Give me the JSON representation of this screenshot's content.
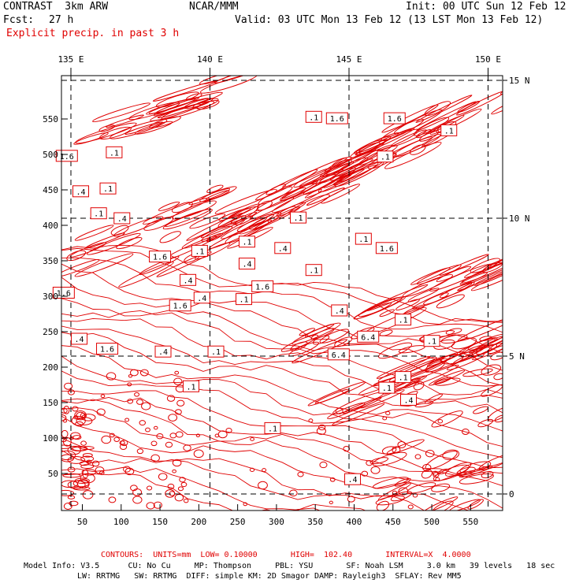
{
  "header": {
    "model": "CONTRAST  3km ARW",
    "org": "NCAR/MMM",
    "init": "Init: 00 UTC Sun 12 Feb 12",
    "fcst_label": "Fcst:",
    "fcst_value": "27 h",
    "valid": "Valid: 03 UTC Mon 13 Feb 12 (13 LST Mon 13 Feb 12)",
    "field": "Explicit precip. in past 3 h"
  },
  "chart_data": {
    "type": "contour",
    "x_ticks": [
      50,
      100,
      150,
      200,
      250,
      300,
      350,
      400,
      450,
      500,
      550
    ],
    "y_ticks": [
      50,
      100,
      150,
      200,
      250,
      300,
      350,
      400,
      450,
      500,
      550
    ],
    "xlim": [
      0,
      560
    ],
    "ylim": [
      0,
      560
    ],
    "lon_labels": [
      "135 E",
      "140 E",
      "145 E",
      "150 E"
    ],
    "lon_values": [
      135,
      140,
      145,
      150
    ],
    "lat_labels": [
      "15 N",
      "10 N",
      "5 N",
      "0"
    ],
    "lat_values": [
      15,
      10,
      5,
      0
    ],
    "contour_labels": [
      {
        "text": ".1",
        "x": 348,
        "y": 553
      },
      {
        "text": "1.6",
        "x": 378,
        "y": 551
      },
      {
        "text": "1.6",
        "x": 452,
        "y": 551
      },
      {
        "text": ".1",
        "x": 522,
        "y": 534
      },
      {
        "text": "1.6",
        "x": 30,
        "y": 498
      },
      {
        "text": ".1",
        "x": 91,
        "y": 503
      },
      {
        "text": ".1",
        "x": 440,
        "y": 497
      },
      {
        "text": ".4",
        "x": 48,
        "y": 448
      },
      {
        "text": ".1",
        "x": 83,
        "y": 452
      },
      {
        "text": ".1",
        "x": 71,
        "y": 417
      },
      {
        "text": ".4",
        "x": 101,
        "y": 410
      },
      {
        "text": ".1",
        "x": 328,
        "y": 411
      },
      {
        "text": ".1",
        "x": 262,
        "y": 377
      },
      {
        "text": ".1",
        "x": 412,
        "y": 381
      },
      {
        "text": "1.6",
        "x": 442,
        "y": 368
      },
      {
        "text": ".4",
        "x": 308,
        "y": 368
      },
      {
        "text": ".1",
        "x": 201,
        "y": 364
      },
      {
        "text": "1.6",
        "x": 150,
        "y": 356
      },
      {
        "text": ".4",
        "x": 262,
        "y": 346
      },
      {
        "text": ".1",
        "x": 348,
        "y": 337
      },
      {
        "text": ".4",
        "x": 186,
        "y": 323
      },
      {
        "text": "1.6",
        "x": 282,
        "y": 314
      },
      {
        "text": "1.6",
        "x": 26,
        "y": 305
      },
      {
        "text": ".4",
        "x": 204,
        "y": 298
      },
      {
        "text": ".1",
        "x": 258,
        "y": 296
      },
      {
        "text": "1.6",
        "x": 176,
        "y": 287
      },
      {
        "text": ".4",
        "x": 381,
        "y": 280
      },
      {
        "text": ".1",
        "x": 463,
        "y": 267
      },
      {
        "text": ".4",
        "x": 46,
        "y": 240
      },
      {
        "text": "6.4",
        "x": 418,
        "y": 243
      },
      {
        "text": ".1",
        "x": 500,
        "y": 237
      },
      {
        "text": "1.6",
        "x": 82,
        "y": 226
      },
      {
        "text": ".4",
        "x": 154,
        "y": 222
      },
      {
        "text": ".1",
        "x": 222,
        "y": 222
      },
      {
        "text": "6.4",
        "x": 380,
        "y": 218
      },
      {
        "text": ".1",
        "x": 463,
        "y": 186
      },
      {
        "text": ".1",
        "x": 190,
        "y": 173
      },
      {
        "text": ".1",
        "x": 442,
        "y": 171
      },
      {
        "text": ".4",
        "x": 470,
        "y": 154
      },
      {
        "text": ".1",
        "x": 295,
        "y": 114
      },
      {
        "text": ".4",
        "x": 398,
        "y": 42
      }
    ]
  },
  "footer": {
    "contours": "CONTOURS:  UNITS=mm  LOW= 0.10000       HIGH=  102.40       INTERVAL=X  4.0000",
    "line1": "Model Info: V3.5      CU: No Cu     MP: Thompson     PBL: YSU       SF: Noah LSM     3.0 km   39 levels   18 sec",
    "line2": "LW: RRTMG   SW: RRTMG  DIFF: simple KM: 2D Smagor DAMP: Rayleigh3  SFLAY: Rev MM5"
  },
  "colors": {
    "contour": "#e00000",
    "grid": "#000000",
    "frame": "#000000"
  }
}
